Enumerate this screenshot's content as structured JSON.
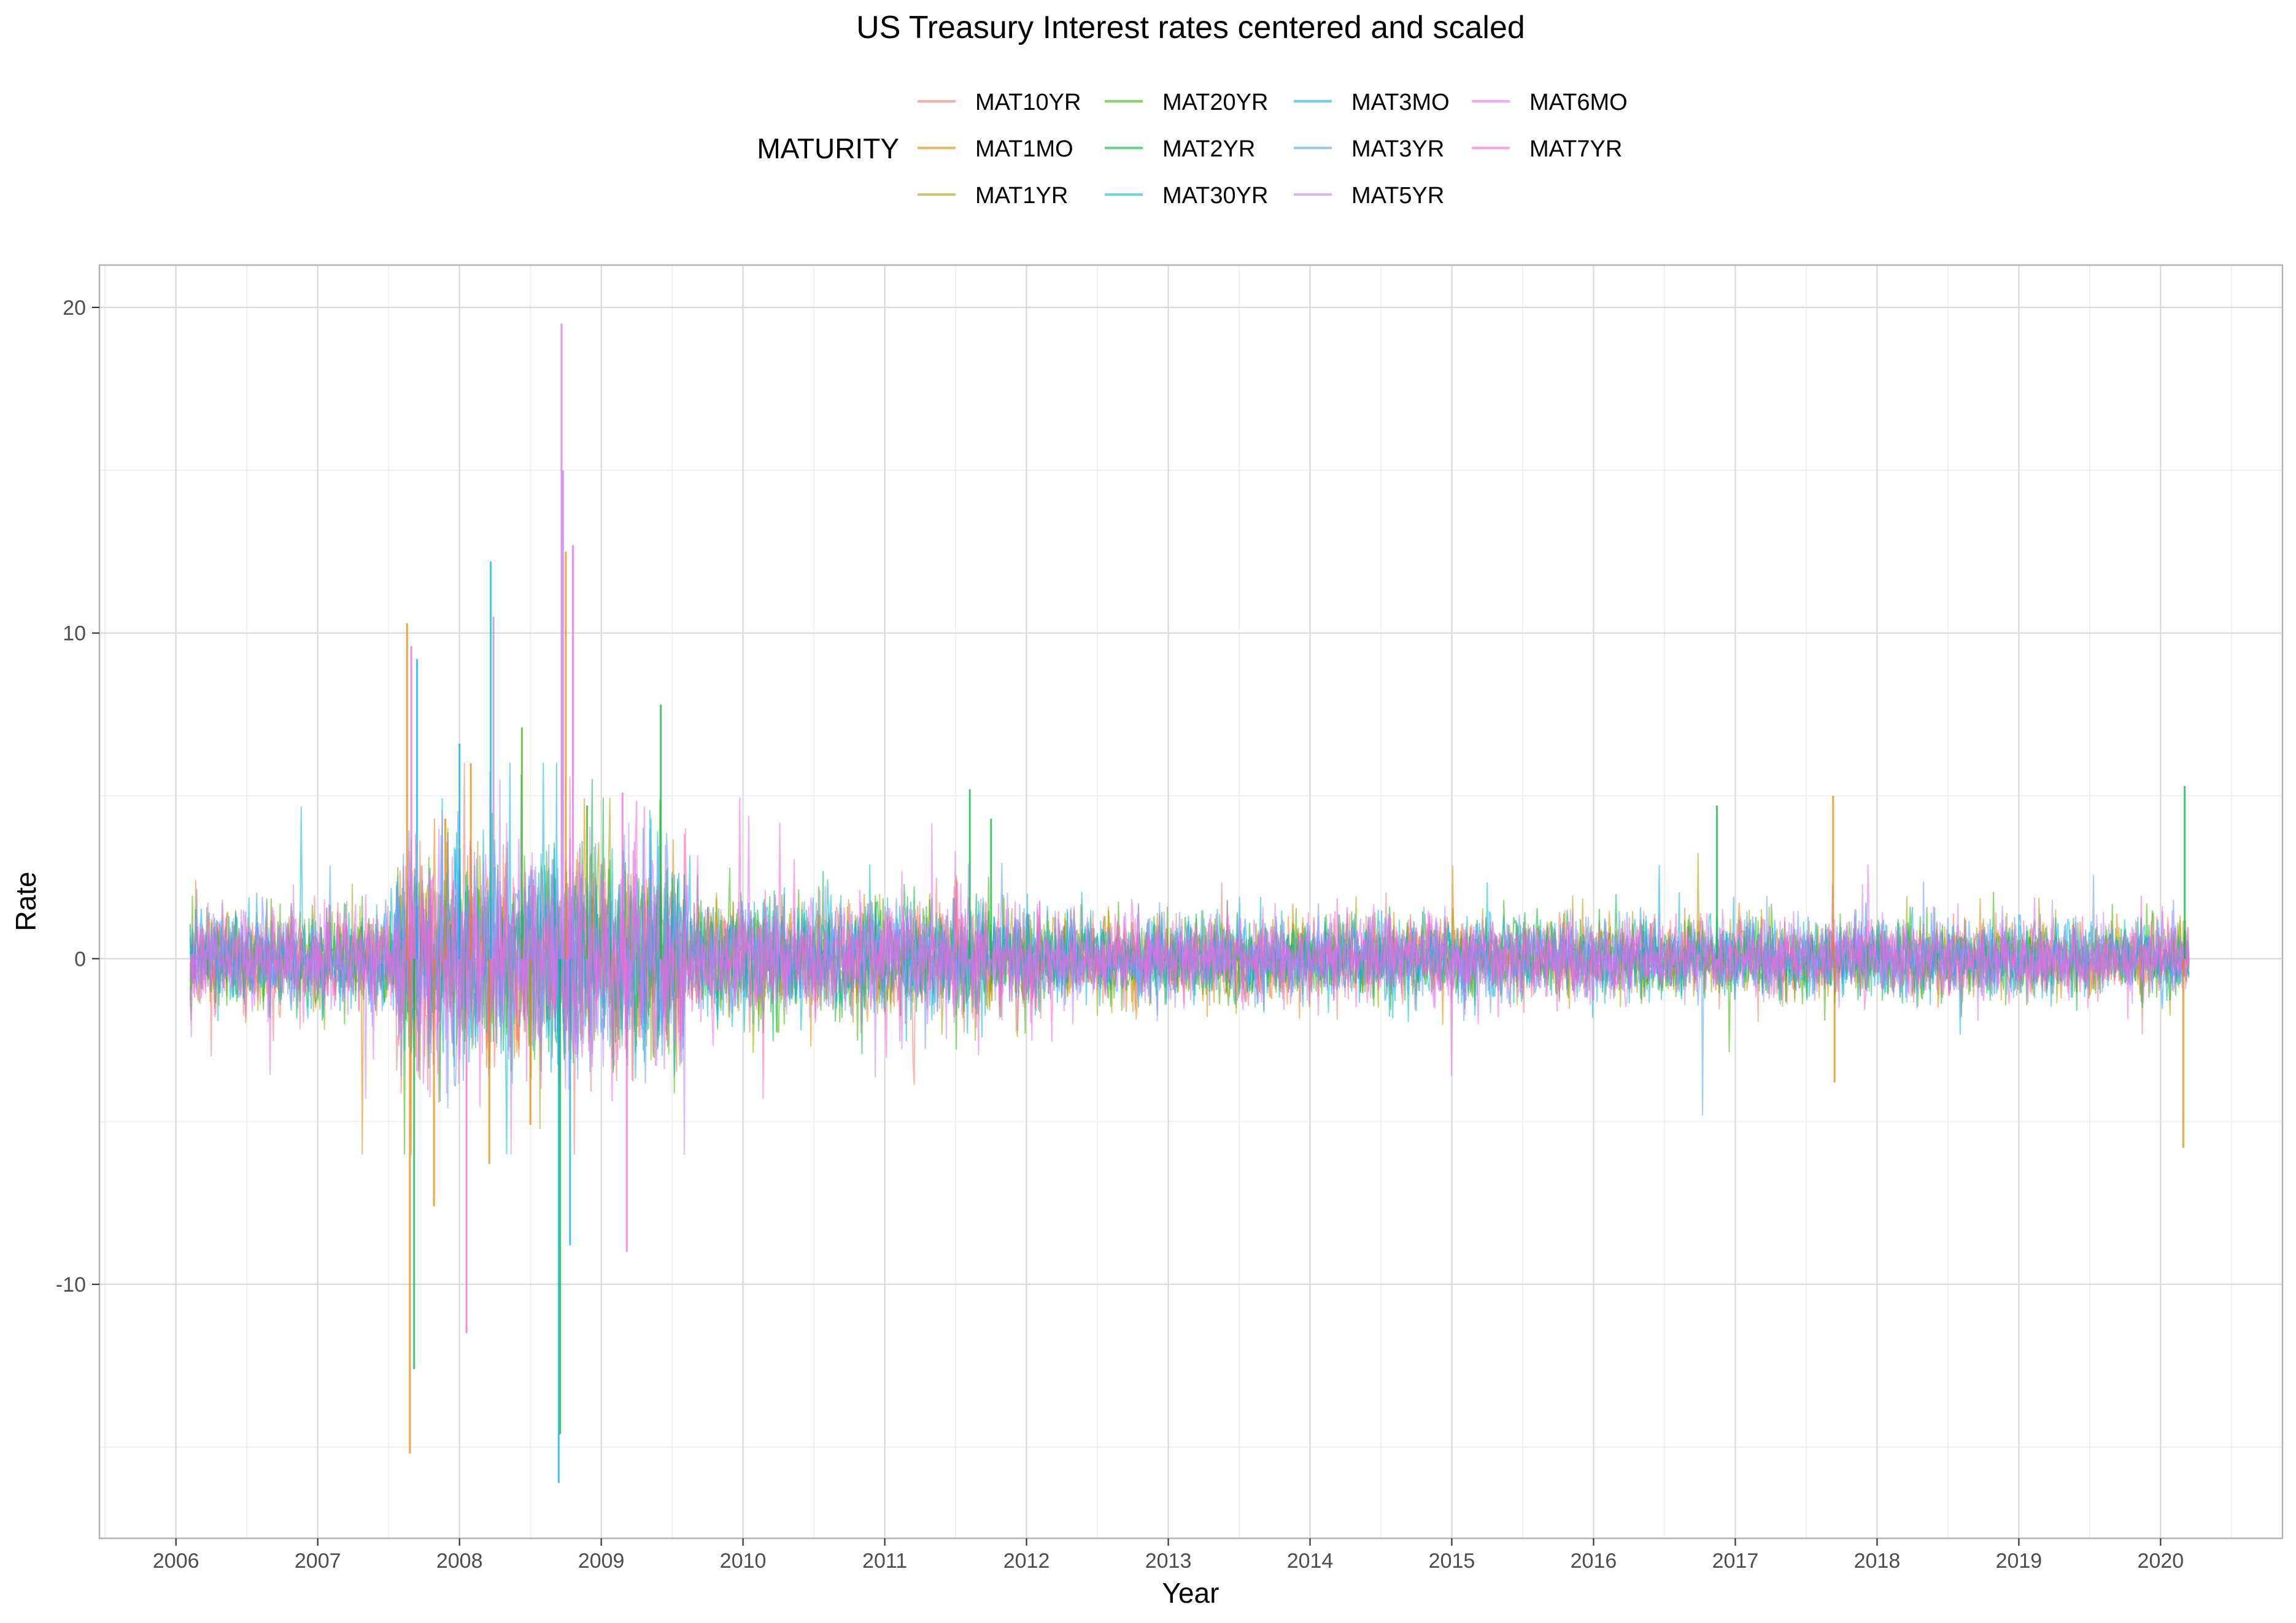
{
  "chart_data": {
    "type": "line",
    "title": "US Treasury Interest rates centered and scaled",
    "xlabel": "Year",
    "ylabel": "Rate",
    "legend": {
      "title": "MATURITY",
      "placement": "top",
      "columns": [
        [
          "MAT10YR",
          "MAT1MO",
          "MAT1YR"
        ],
        [
          "MAT20YR",
          "MAT2YR",
          "MAT30YR"
        ],
        [
          "MAT3MO",
          "MAT3YR",
          "MAT5YR"
        ],
        [
          "MAT6MO",
          "MAT7YR"
        ]
      ]
    },
    "xlim": [
      2005.46,
      2020.86
    ],
    "ylim": [
      -17.8,
      21.3
    ],
    "x_ticks": [
      2006,
      2007,
      2008,
      2009,
      2010,
      2011,
      2012,
      2013,
      2014,
      2015,
      2016,
      2017,
      2018,
      2019,
      2020
    ],
    "y_ticks": [
      -10,
      0,
      10,
      20
    ],
    "y_tick_labels": [
      "-10",
      "0",
      "10",
      "20"
    ],
    "grid": true,
    "series": [
      {
        "name": "MAT10YR",
        "color": "#F8766D"
      },
      {
        "name": "MAT1MO",
        "color": "#E58700"
      },
      {
        "name": "MAT1YR",
        "color": "#A3A500"
      },
      {
        "name": "MAT20YR",
        "color": "#39B600"
      },
      {
        "name": "MAT2YR",
        "color": "#00BA38"
      },
      {
        "name": "MAT30YR",
        "color": "#00BFC4"
      },
      {
        "name": "MAT3MO",
        "color": "#00B0F6"
      },
      {
        "name": "MAT3YR",
        "color": "#619CFF"
      },
      {
        "name": "MAT5YR",
        "color": "#B983FF"
      },
      {
        "name": "MAT6MO",
        "color": "#E76BF3"
      },
      {
        "name": "MAT7YR",
        "color": "#FD61D1"
      }
    ],
    "data_start": 2006.1,
    "data_end": 2020.2,
    "spikes": [
      {
        "x": 2007.63,
        "y": 10.3,
        "series": "MAT1MO"
      },
      {
        "x": 2007.65,
        "y": -15.2,
        "series": "MAT1MO"
      },
      {
        "x": 2007.66,
        "y": 9.6,
        "series": "MAT7YR"
      },
      {
        "x": 2007.68,
        "y": -12.6,
        "series": "MAT2YR"
      },
      {
        "x": 2007.7,
        "y": 9.2,
        "series": "MAT3MO"
      },
      {
        "x": 2007.82,
        "y": -7.6,
        "series": "MAT1MO"
      },
      {
        "x": 2007.9,
        "y": 4.3,
        "series": "MAT1MO"
      },
      {
        "x": 2008.0,
        "y": 6.6,
        "series": "MAT3MO"
      },
      {
        "x": 2008.05,
        "y": -11.5,
        "series": "MAT7YR"
      },
      {
        "x": 2008.08,
        "y": 6.0,
        "series": "MAT1MO"
      },
      {
        "x": 2008.22,
        "y": 12.2,
        "series": "MAT30YR"
      },
      {
        "x": 2008.24,
        "y": 10.5,
        "series": "MAT5YR"
      },
      {
        "x": 2008.21,
        "y": -6.3,
        "series": "MAT1MO"
      },
      {
        "x": 2008.44,
        "y": 7.1,
        "series": "MAT20YR"
      },
      {
        "x": 2008.5,
        "y": -5.1,
        "series": "MAT1MO"
      },
      {
        "x": 2008.72,
        "y": 19.5,
        "series": "MAT6MO"
      },
      {
        "x": 2008.73,
        "y": 15.0,
        "series": "MAT5YR"
      },
      {
        "x": 2008.7,
        "y": -16.1,
        "series": "MAT3MO"
      },
      {
        "x": 2008.71,
        "y": -14.6,
        "series": "MAT2YR"
      },
      {
        "x": 2008.75,
        "y": 12.5,
        "series": "MAT1MO"
      },
      {
        "x": 2008.8,
        "y": 12.7,
        "series": "MAT6MO"
      },
      {
        "x": 2008.78,
        "y": -8.8,
        "series": "MAT3MO"
      },
      {
        "x": 2008.9,
        "y": 4.7,
        "series": "MAT20YR"
      },
      {
        "x": 2009.15,
        "y": 5.1,
        "series": "MAT7YR"
      },
      {
        "x": 2009.18,
        "y": -9.0,
        "series": "MAT7YR"
      },
      {
        "x": 2009.42,
        "y": 7.8,
        "series": "MAT2YR"
      },
      {
        "x": 2011.6,
        "y": 5.2,
        "series": "MAT2YR"
      },
      {
        "x": 2011.75,
        "y": 4.3,
        "series": "MAT2YR"
      },
      {
        "x": 2016.87,
        "y": 4.7,
        "series": "MAT2YR"
      },
      {
        "x": 2017.69,
        "y": 5.0,
        "series": "MAT1MO"
      },
      {
        "x": 2017.7,
        "y": -3.8,
        "series": "MAT1MO"
      },
      {
        "x": 2020.17,
        "y": 5.3,
        "series": "MAT2YR"
      },
      {
        "x": 2020.16,
        "y": -5.8,
        "series": "MAT1MO"
      }
    ],
    "volatility_periods": [
      {
        "from": 2006.1,
        "to": 2007.55,
        "amplitude": 1.2
      },
      {
        "from": 2007.55,
        "to": 2009.6,
        "amplitude": 2.6
      },
      {
        "from": 2009.6,
        "to": 2012.1,
        "amplitude": 1.4
      },
      {
        "from": 2012.1,
        "to": 2016.0,
        "amplitude": 1.0
      },
      {
        "from": 2016.0,
        "to": 2020.2,
        "amplitude": 0.9
      }
    ]
  }
}
